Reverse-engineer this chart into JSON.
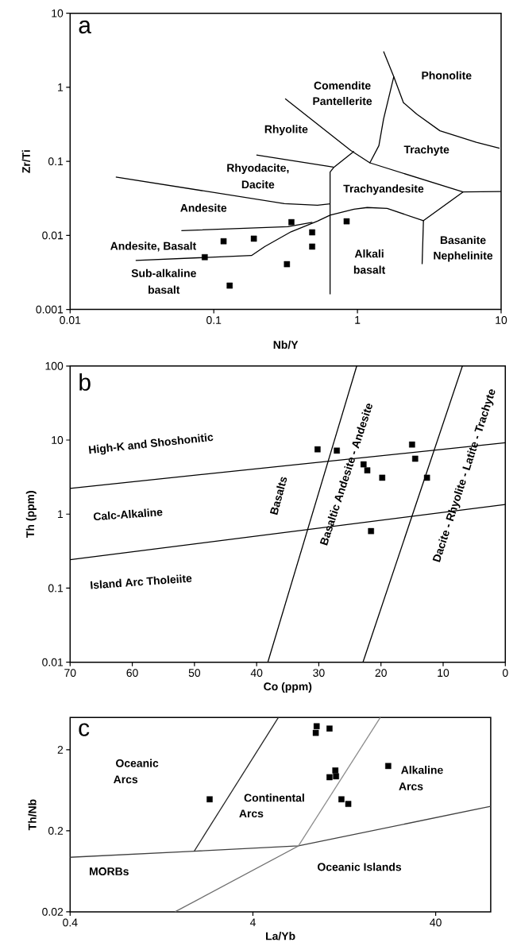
{
  "chart_data": [
    {
      "type": "scatter",
      "title": "a",
      "xlabel": "Nb/Y",
      "ylabel": "Zr/Ti",
      "log": "xy",
      "xlim": [
        0.01,
        10
      ],
      "ylim": [
        0.001,
        10
      ],
      "xticks": [
        0.01,
        0.1,
        1,
        10
      ],
      "yticks": [
        0.001,
        0.01,
        0.1,
        1,
        10
      ],
      "series": [
        {
          "type": "line",
          "color": "#000000",
          "x": [
            0.0208,
            0.31,
            0.527,
            0.645
          ],
          "values": [
            0.0614,
            0.0269,
            0.0256,
            0.0267
          ]
        },
        {
          "type": "line",
          "color": "#000000",
          "x": [
            0.645,
            0.645,
            0.687,
            0.946
          ],
          "values": [
            0.0016,
            0.0716,
            0.0835,
            0.137
          ]
        },
        {
          "type": "line",
          "color": "#000000",
          "x": [
            0.198,
            0.681
          ],
          "values": [
            0.122,
            0.0835
          ]
        },
        {
          "type": "line",
          "color": "#000000",
          "x": [
            0.314,
            0.9,
            1.22,
            1.41,
            1.52,
            1.79,
            1.52
          ],
          "values": [
            0.703,
            0.14,
            0.0955,
            0.163,
            0.372,
            1.39,
            3.06
          ]
        },
        {
          "type": "line",
          "color": "#000000",
          "x": [
            1.79,
            2.09,
            2.59,
            3.75,
            6.72,
            9.75
          ],
          "values": [
            1.39,
            0.621,
            0.433,
            0.259,
            0.181,
            0.15
          ]
        },
        {
          "type": "line",
          "color": "#000000",
          "x": [
            1.22,
            5.43,
            10
          ],
          "values": [
            0.0955,
            0.0386,
            0.0391
          ]
        },
        {
          "type": "line",
          "color": "#000000",
          "x": [
            0.0286,
            0.183,
            0.226,
            0.345,
            0.527,
            0.645,
            0.946,
            1.17,
            1.61,
            2.88,
            5.43
          ],
          "values": [
            0.00459,
            0.00535,
            0.00706,
            0.0112,
            0.0156,
            0.0188,
            0.0226,
            0.0238,
            0.0231,
            0.0158,
            0.0386
          ]
        },
        {
          "type": "line",
          "color": "#000000",
          "x": [
            2.88,
            2.82
          ],
          "values": [
            0.0158,
            0.00409
          ]
        },
        {
          "type": "line",
          "color": "#000000",
          "x": [
            0.0595,
            0.328,
            0.486
          ],
          "values": [
            0.0116,
            0.0131,
            0.015
          ]
        },
        {
          "marker": "square",
          "color": "#000000",
          "x": [
            0.0865,
            0.117,
            0.19,
            0.347,
            0.484,
            0.484,
            0.323,
            0.129,
            0.841
          ],
          "values": [
            0.00508,
            0.00834,
            0.00904,
            0.0151,
            0.011,
            0.00706,
            0.00409,
            0.0021,
            0.0155
          ]
        }
      ],
      "annotations": [
        "Phonolite",
        "Comendite",
        "Pantellerite",
        "Rhyolite",
        "Trachyte",
        "Rhyodacite,",
        "Dacite",
        "Trachyandesite",
        "Andesite",
        "Andesite, Basalt",
        "Sub-alkaline",
        "basalt",
        "Alkali",
        "basalt",
        "Basanite",
        "Nephelinite"
      ]
    },
    {
      "type": "scatter",
      "title": "b",
      "xlabel": "Co (ppm)",
      "ylabel": "Th (ppm)",
      "log": "y",
      "xlim": [
        70,
        0
      ],
      "ylim": [
        0.01,
        100
      ],
      "xticks": [
        70,
        60,
        50,
        40,
        30,
        20,
        10,
        0
      ],
      "yticks": [
        0.01,
        0.1,
        1,
        10,
        100
      ],
      "series": [
        {
          "type": "line",
          "color": "#000000",
          "x": [
            70,
            0
          ],
          "values": [
            2.23,
            9.2
          ]
        },
        {
          "type": "line",
          "color": "#000000",
          "x": [
            70,
            0
          ],
          "values": [
            0.242,
            1.35
          ]
        },
        {
          "type": "line",
          "color": "#000000",
          "x": [
            38.2,
            23.9
          ],
          "values": [
            0.01,
            100
          ]
        },
        {
          "type": "line",
          "color": "#000000",
          "x": [
            22.9,
            6.9
          ],
          "values": [
            0.01,
            100
          ]
        },
        {
          "marker": "square",
          "color": "#000000",
          "x": [
            30.2,
            27.1,
            22.8,
            22.2,
            19.8,
            15.0,
            14.5,
            12.6,
            21.6
          ],
          "values": [
            7.5,
            7.2,
            4.7,
            3.9,
            3.1,
            8.7,
            5.6,
            3.1,
            0.59
          ]
        }
      ],
      "annotations": [
        "High-K and Shoshonitic",
        "Calc-Alkaline",
        "Island Arc Tholeiite",
        "Basalts",
        "Basaltic Andesite - Andesite",
        "Dacite - Rhyolite - Latite - Trachyte"
      ]
    },
    {
      "type": "scatter",
      "title": "c",
      "xlabel": "La/Yb",
      "ylabel": "Th/Nb",
      "log": "xy",
      "xlim": [
        0.4,
        80
      ],
      "ylim": [
        0.02,
        5
      ],
      "xticks": [
        0.4,
        4,
        40
      ],
      "yticks": [
        0.02,
        0.2,
        2
      ],
      "series": [
        {
          "type": "line",
          "color": "#404040",
          "x": [
            0.4,
            1.91,
            7.1,
            80
          ],
          "values": [
            0.0942,
            0.112,
            0.13,
            0.401
          ]
        },
        {
          "type": "line",
          "color": "#262626",
          "x": [
            1.91,
            5.51
          ],
          "values": [
            0.112,
            5
          ]
        },
        {
          "type": "line",
          "color": "#8c8c8c",
          "x": [
            7.1,
            19.9
          ],
          "values": [
            0.13,
            5
          ]
        },
        {
          "type": "line",
          "color": "#6e6e6e",
          "x": [
            1.5,
            7.1
          ],
          "values": [
            0.02,
            0.13
          ]
        },
        {
          "marker": "square",
          "color": "#000000",
          "x": [
            2.32,
            8.93,
            8.83,
            10.5,
            11.3,
            11.4,
            10.5,
            12.2,
            13.3,
            22.0
          ],
          "values": [
            0.489,
            3.9,
            3.23,
            3.65,
            1.11,
            0.94,
            0.916,
            0.489,
            0.429,
            1.26
          ]
        }
      ],
      "annotations": [
        "Oceanic",
        "Arcs",
        "Continental",
        "Arcs",
        "Alkaline",
        "Arcs",
        "MORBs",
        "Oceanic Islands"
      ]
    }
  ]
}
